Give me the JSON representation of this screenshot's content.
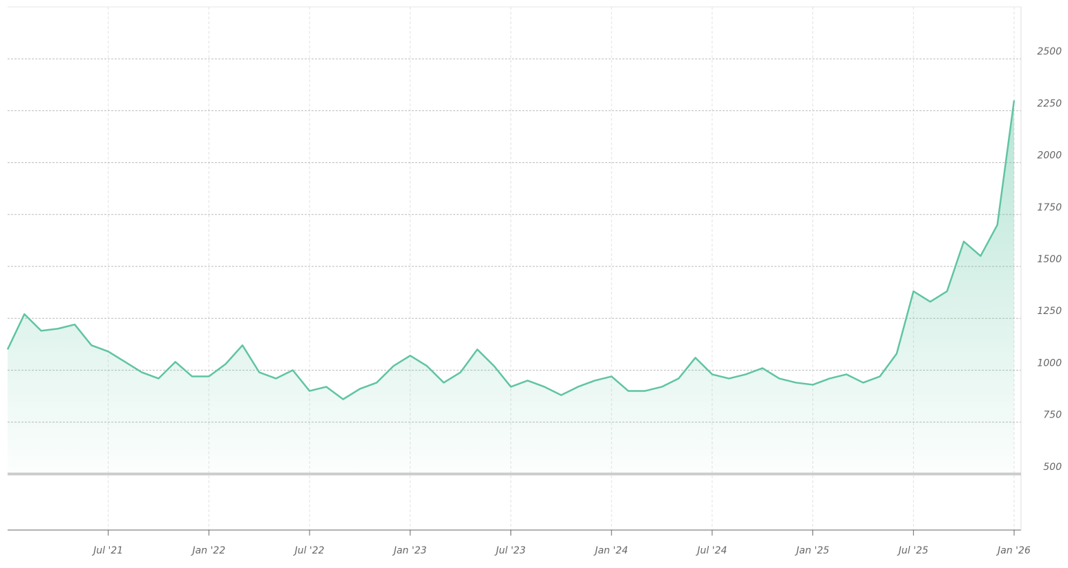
{
  "chart_data": {
    "type": "area",
    "x": [
      "2021-01",
      "2021-02",
      "2021-03",
      "2021-04",
      "2021-05",
      "2021-06",
      "2021-07",
      "2021-08",
      "2021-09",
      "2021-10",
      "2021-11",
      "2021-12",
      "2022-01",
      "2022-02",
      "2022-03",
      "2022-04",
      "2022-05",
      "2022-06",
      "2022-07",
      "2022-08",
      "2022-09",
      "2022-10",
      "2022-11",
      "2022-12",
      "2023-01",
      "2023-02",
      "2023-03",
      "2023-04",
      "2023-05",
      "2023-06",
      "2023-07",
      "2023-08",
      "2023-09",
      "2023-10",
      "2023-11",
      "2023-12",
      "2024-01",
      "2024-02",
      "2024-03",
      "2024-04",
      "2024-05",
      "2024-06",
      "2024-07",
      "2024-08",
      "2024-09",
      "2024-10",
      "2024-11",
      "2024-12",
      "2025-01",
      "2025-02",
      "2025-03",
      "2025-04",
      "2025-05",
      "2025-06",
      "2025-07",
      "2025-08",
      "2025-09",
      "2025-10",
      "2025-11",
      "2025-12",
      "2026-01"
    ],
    "values": [
      1100,
      1270,
      1190,
      1200,
      1220,
      1120,
      1090,
      1040,
      990,
      960,
      1040,
      970,
      970,
      1030,
      1120,
      990,
      960,
      1000,
      900,
      920,
      860,
      910,
      940,
      1020,
      1070,
      1020,
      940,
      990,
      1100,
      1020,
      920,
      950,
      920,
      880,
      920,
      950,
      970,
      900,
      900,
      920,
      960,
      1060,
      980,
      960,
      980,
      1010,
      960,
      940,
      930,
      960,
      980,
      940,
      970,
      1080,
      1380,
      1330,
      1380,
      1620,
      1550,
      1700,
      2300
    ],
    "color": "#5fc4a3",
    "baseline": 500,
    "xlim": [
      "2021-01",
      "2026-01"
    ],
    "xticks": [
      {
        "value": "2021-07",
        "label": "Jul '21"
      },
      {
        "value": "2022-01",
        "label": "Jan '22"
      },
      {
        "value": "2022-07",
        "label": "Jul '22"
      },
      {
        "value": "2023-01",
        "label": "Jan '23"
      },
      {
        "value": "2023-07",
        "label": "Jul '23"
      },
      {
        "value": "2024-01",
        "label": "Jan '24"
      },
      {
        "value": "2024-07",
        "label": "Jul '24"
      },
      {
        "value": "2025-01",
        "label": "Jan '25"
      },
      {
        "value": "2025-07",
        "label": "Jul '25"
      },
      {
        "value": "2026-01",
        "label": "Jan '26"
      }
    ],
    "ylim": [
      230,
      2750
    ],
    "yticks": [
      500,
      750,
      1000,
      1250,
      1500,
      1750,
      2000,
      2250,
      2500
    ],
    "grid": true
  }
}
